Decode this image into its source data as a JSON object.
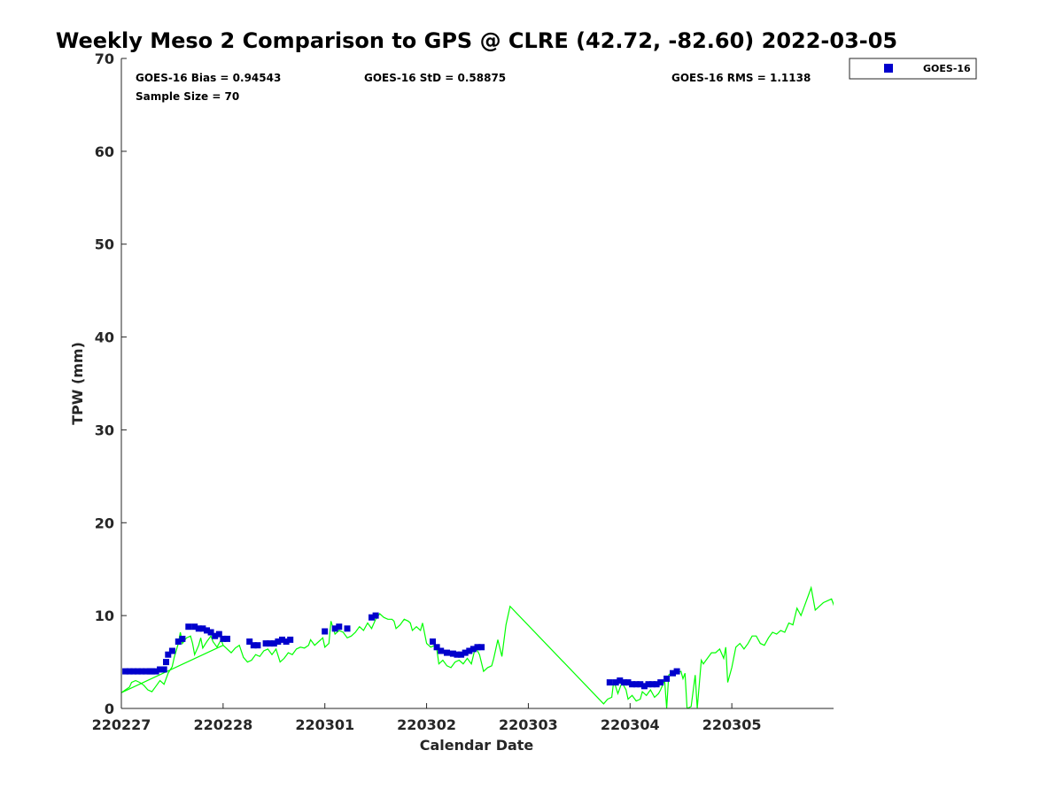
{
  "chart_data": {
    "type": "scatter",
    "title": "Weekly Meso 2 Comparison to GPS @ CLRE (42.72, -82.60) 2022-03-05",
    "xlabel": "Calendar Date",
    "ylabel": "TPW (mm)",
    "xlim": [
      0,
      7
    ],
    "ylim": [
      0,
      70
    ],
    "x_ticks": [
      0,
      1,
      2,
      3,
      4,
      5,
      6
    ],
    "x_tick_labels": [
      "220227",
      "220228",
      "220301",
      "220302",
      "220303",
      "220304",
      "220305"
    ],
    "y_ticks": [
      0,
      10,
      20,
      30,
      40,
      50,
      60,
      70
    ],
    "y_tick_labels": [
      "0",
      "10",
      "20",
      "30",
      "40",
      "50",
      "60",
      "70"
    ],
    "grid": false,
    "legend": {
      "position": "top-right, outside plot",
      "entries": [
        "GOES-16"
      ]
    },
    "stats": {
      "bias": "GOES-16 Bias = 0.94543",
      "std": "GOES-16 StD = 0.58875",
      "rms": "GOES-16 RMS = 1.1138",
      "sample": "Sample Size = 70"
    },
    "series": [
      {
        "name": "GOES-16",
        "type": "scatter",
        "color": "#0000cc",
        "marker": "square",
        "points": [
          [
            0.04,
            4.0
          ],
          [
            0.08,
            4.0
          ],
          [
            0.12,
            4.0
          ],
          [
            0.16,
            4.0
          ],
          [
            0.2,
            4.0
          ],
          [
            0.24,
            4.0
          ],
          [
            0.28,
            4.0
          ],
          [
            0.3,
            4.0
          ],
          [
            0.34,
            4.0
          ],
          [
            0.38,
            4.2
          ],
          [
            0.42,
            4.2
          ],
          [
            0.44,
            5.0
          ],
          [
            0.46,
            5.8
          ],
          [
            0.5,
            6.2
          ],
          [
            0.56,
            7.2
          ],
          [
            0.6,
            7.5
          ],
          [
            0.66,
            8.8
          ],
          [
            0.72,
            8.8
          ],
          [
            0.76,
            8.6
          ],
          [
            0.8,
            8.6
          ],
          [
            0.84,
            8.4
          ],
          [
            0.88,
            8.2
          ],
          [
            0.92,
            7.8
          ],
          [
            0.96,
            8.0
          ],
          [
            1.0,
            7.5
          ],
          [
            1.04,
            7.5
          ],
          [
            1.26,
            7.2
          ],
          [
            1.3,
            6.8
          ],
          [
            1.34,
            6.8
          ],
          [
            1.42,
            7.0
          ],
          [
            1.46,
            7.0
          ],
          [
            1.5,
            7.0
          ],
          [
            1.54,
            7.2
          ],
          [
            1.58,
            7.4
          ],
          [
            1.62,
            7.2
          ],
          [
            1.66,
            7.4
          ],
          [
            2.0,
            8.3
          ],
          [
            2.1,
            8.6
          ],
          [
            2.14,
            8.8
          ],
          [
            2.22,
            8.6
          ],
          [
            2.46,
            9.8
          ],
          [
            2.5,
            10.0
          ],
          [
            3.06,
            7.2
          ],
          [
            3.1,
            6.6
          ],
          [
            3.14,
            6.2
          ],
          [
            3.2,
            6.0
          ],
          [
            3.26,
            5.9
          ],
          [
            3.3,
            5.8
          ],
          [
            3.34,
            5.8
          ],
          [
            3.38,
            6.0
          ],
          [
            3.42,
            6.2
          ],
          [
            3.46,
            6.4
          ],
          [
            3.5,
            6.6
          ],
          [
            3.54,
            6.6
          ],
          [
            4.8,
            2.8
          ],
          [
            4.86,
            2.8
          ],
          [
            4.9,
            3.0
          ],
          [
            4.94,
            2.8
          ],
          [
            4.98,
            2.8
          ],
          [
            5.02,
            2.6
          ],
          [
            5.06,
            2.6
          ],
          [
            5.1,
            2.6
          ],
          [
            5.14,
            2.4
          ],
          [
            5.18,
            2.6
          ],
          [
            5.22,
            2.6
          ],
          [
            5.26,
            2.6
          ],
          [
            5.3,
            2.8
          ],
          [
            5.36,
            3.2
          ],
          [
            5.42,
            3.8
          ],
          [
            5.46,
            4.0
          ]
        ]
      },
      {
        "name": "GPS",
        "type": "line",
        "color": "#00ff00",
        "points": [
          [
            0.0,
            1.7
          ],
          [
            0.04,
            2.0
          ],
          [
            0.08,
            2.3
          ],
          [
            0.1,
            2.8
          ],
          [
            0.14,
            3.0
          ],
          [
            0.18,
            2.8
          ],
          [
            0.22,
            2.5
          ],
          [
            0.26,
            2.0
          ],
          [
            0.3,
            1.8
          ],
          [
            0.34,
            2.4
          ],
          [
            0.38,
            3.0
          ],
          [
            0.42,
            2.6
          ],
          [
            0.46,
            3.8
          ],
          [
            0.5,
            4.5
          ],
          [
            0.52,
            5.5
          ],
          [
            0.56,
            7.0
          ],
          [
            0.58,
            8.2
          ],
          [
            0.6,
            7.0
          ],
          [
            0.64,
            7.6
          ],
          [
            0.68,
            7.8
          ],
          [
            0.7,
            7.0
          ],
          [
            0.72,
            5.8
          ],
          [
            0.76,
            6.8
          ],
          [
            0.78,
            7.6
          ],
          [
            0.8,
            6.5
          ],
          [
            0.84,
            7.2
          ],
          [
            0.88,
            7.8
          ],
          [
            0.9,
            7.2
          ],
          [
            0.94,
            6.6
          ],
          [
            0.98,
            7.4
          ],
          [
            1.0,
            6.8
          ],
          [
            1.04,
            6.4
          ],
          [
            1.08,
            6.0
          ],
          [
            1.12,
            6.5
          ],
          [
            1.16,
            6.8
          ],
          [
            1.2,
            5.5
          ],
          [
            1.24,
            5.0
          ],
          [
            1.28,
            5.2
          ],
          [
            1.32,
            5.8
          ],
          [
            1.36,
            5.6
          ],
          [
            1.4,
            6.2
          ],
          [
            1.44,
            6.4
          ],
          [
            1.48,
            5.8
          ],
          [
            1.52,
            6.4
          ],
          [
            1.56,
            5.0
          ],
          [
            1.6,
            5.4
          ],
          [
            1.64,
            6.0
          ],
          [
            1.68,
            5.8
          ],
          [
            1.72,
            6.4
          ],
          [
            1.76,
            6.6
          ],
          [
            1.8,
            6.5
          ],
          [
            1.84,
            6.8
          ],
          [
            1.86,
            7.4
          ],
          [
            1.9,
            6.8
          ],
          [
            1.94,
            7.2
          ],
          [
            1.98,
            7.6
          ],
          [
            2.0,
            6.6
          ],
          [
            2.04,
            7.0
          ],
          [
            2.06,
            9.4
          ],
          [
            2.1,
            8.0
          ],
          [
            2.14,
            8.4
          ],
          [
            2.18,
            8.2
          ],
          [
            2.22,
            7.6
          ],
          [
            2.26,
            7.8
          ],
          [
            2.3,
            8.2
          ],
          [
            2.34,
            8.8
          ],
          [
            2.38,
            8.4
          ],
          [
            2.42,
            9.2
          ],
          [
            2.46,
            8.6
          ],
          [
            2.5,
            9.6
          ],
          [
            2.54,
            10.2
          ],
          [
            2.58,
            9.8
          ],
          [
            2.62,
            9.6
          ],
          [
            2.66,
            9.6
          ],
          [
            2.68,
            9.4
          ],
          [
            2.7,
            8.6
          ],
          [
            2.74,
            9.0
          ],
          [
            2.78,
            9.6
          ],
          [
            2.82,
            9.4
          ],
          [
            2.84,
            9.2
          ],
          [
            2.86,
            8.4
          ],
          [
            2.9,
            8.8
          ],
          [
            2.94,
            8.4
          ],
          [
            2.96,
            9.2
          ],
          [
            3.0,
            7.0
          ],
          [
            3.04,
            6.6
          ],
          [
            3.08,
            6.8
          ],
          [
            3.1,
            6.4
          ],
          [
            3.12,
            4.8
          ],
          [
            3.16,
            5.2
          ],
          [
            3.2,
            4.6
          ],
          [
            3.24,
            4.4
          ],
          [
            3.28,
            5.0
          ],
          [
            3.32,
            5.2
          ],
          [
            3.36,
            4.8
          ],
          [
            3.4,
            5.4
          ],
          [
            3.44,
            4.8
          ],
          [
            3.48,
            6.6
          ],
          [
            3.52,
            5.8
          ],
          [
            3.56,
            4.0
          ],
          [
            3.6,
            4.4
          ],
          [
            3.64,
            4.6
          ],
          [
            3.66,
            5.4
          ],
          [
            3.7,
            7.4
          ],
          [
            3.74,
            5.6
          ],
          [
            3.78,
            9.0
          ],
          [
            3.82,
            11.0
          ],
          [
            4.74,
            0.5
          ],
          [
            4.78,
            1.0
          ],
          [
            4.82,
            1.2
          ],
          [
            4.84,
            3.0
          ],
          [
            4.88,
            1.6
          ],
          [
            4.92,
            2.8
          ],
          [
            4.96,
            2.0
          ],
          [
            4.98,
            1.0
          ],
          [
            5.02,
            1.4
          ],
          [
            5.06,
            0.8
          ],
          [
            5.1,
            1.0
          ],
          [
            5.12,
            1.8
          ],
          [
            5.16,
            1.4
          ],
          [
            5.2,
            2.0
          ],
          [
            5.24,
            1.2
          ],
          [
            5.28,
            1.6
          ],
          [
            5.3,
            2.0
          ],
          [
            5.34,
            3.0
          ],
          [
            5.36,
            0.0
          ],
          [
            5.38,
            3.6
          ],
          [
            5.42,
            4.0
          ],
          [
            5.46,
            3.8
          ],
          [
            5.5,
            4.0
          ],
          [
            5.52,
            3.2
          ],
          [
            5.54,
            3.8
          ],
          [
            5.56,
            0.0
          ],
          [
            5.6,
            0.2
          ],
          [
            5.64,
            3.6
          ],
          [
            5.66,
            0.0
          ],
          [
            5.7,
            5.2
          ],
          [
            5.72,
            4.8
          ],
          [
            5.76,
            5.4
          ],
          [
            5.8,
            6.0
          ],
          [
            5.84,
            6.0
          ],
          [
            5.88,
            6.4
          ],
          [
            5.92,
            5.4
          ],
          [
            5.94,
            6.6
          ],
          [
            5.96,
            2.8
          ],
          [
            6.0,
            4.4
          ],
          [
            6.04,
            6.6
          ],
          [
            6.08,
            7.0
          ],
          [
            6.12,
            6.4
          ],
          [
            6.16,
            7.0
          ],
          [
            6.2,
            7.8
          ],
          [
            6.24,
            7.8
          ],
          [
            6.28,
            7.0
          ],
          [
            6.32,
            6.8
          ],
          [
            6.36,
            7.6
          ],
          [
            6.4,
            8.2
          ],
          [
            6.44,
            8.0
          ],
          [
            6.48,
            8.4
          ],
          [
            6.52,
            8.2
          ],
          [
            6.56,
            9.2
          ],
          [
            6.6,
            9.0
          ],
          [
            6.64,
            10.8
          ],
          [
            6.68,
            10.0
          ],
          [
            6.72,
            11.2
          ],
          [
            6.76,
            12.4
          ],
          [
            6.78,
            13.0
          ],
          [
            6.82,
            10.6
          ],
          [
            6.86,
            11.0
          ],
          [
            6.9,
            11.4
          ],
          [
            6.94,
            11.6
          ],
          [
            6.98,
            11.8
          ],
          [
            7.0,
            11.2
          ],
          [
            7.04,
            13.8
          ],
          [
            7.08,
            15.6
          ],
          [
            7.12,
            17.2
          ],
          [
            7.16,
            16.4
          ],
          [
            7.2,
            15.4
          ]
        ],
        "fit_segment": [
          [
            0.0,
            1.7
          ],
          [
            1.0,
            6.8
          ]
        ]
      }
    ]
  }
}
